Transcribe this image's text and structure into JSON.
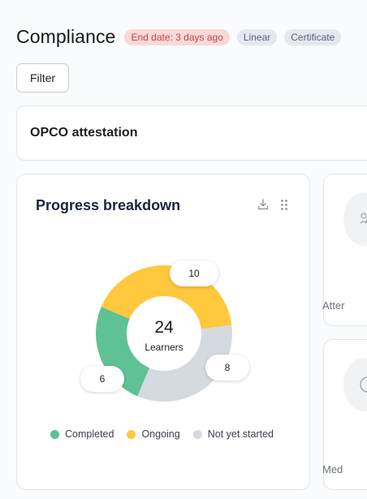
{
  "header": {
    "title": "Compliance",
    "badges": [
      {
        "label": "End date: 3 days ago",
        "tone": "danger"
      },
      {
        "label": "Linear",
        "tone": "neutral"
      },
      {
        "label": "Certificate",
        "tone": "neutral"
      }
    ]
  },
  "toolbar": {
    "filter_label": "Filter"
  },
  "course": {
    "title": "OPCO attestation"
  },
  "progress_card": {
    "title": "Progress breakdown",
    "icons": {
      "download": "download-icon",
      "drag": "drag-handle-icon"
    },
    "total": "24",
    "total_label": "Learners",
    "legend": [
      {
        "label": "Completed",
        "color": "#5ec294"
      },
      {
        "label": "Ongoing",
        "color": "#ffc83d"
      },
      {
        "label": "Not yet started",
        "color": "#d5d9e0"
      }
    ]
  },
  "chart_data": {
    "type": "pie",
    "variant": "donut",
    "categories": [
      "Completed",
      "Ongoing",
      "Not yet started"
    ],
    "values": [
      6,
      10,
      8
    ],
    "colors": [
      "#5ec294",
      "#ffc83d",
      "#d5d9e0"
    ],
    "center_value": 24,
    "center_label": "Learners",
    "legend_position": "bottom"
  },
  "side_cards": [
    {
      "label": "Atter",
      "icon": "people-icon"
    },
    {
      "label": "Med",
      "icon": "circle-icon"
    }
  ]
}
